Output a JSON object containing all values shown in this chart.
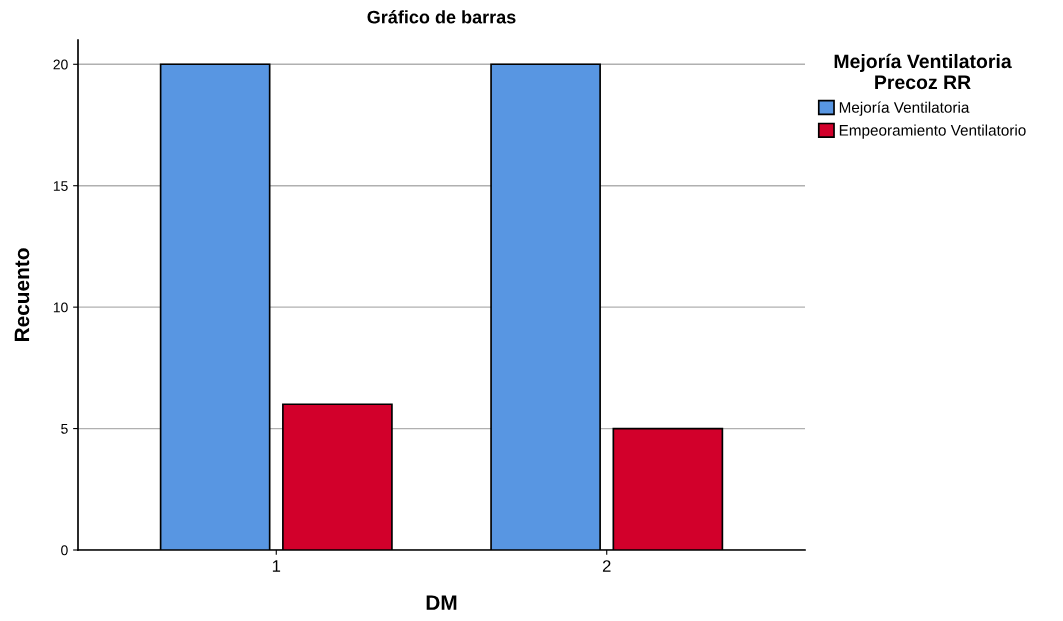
{
  "chart_data": {
    "type": "bar",
    "title": "Gráfico de barras",
    "xlabel": "DM",
    "ylabel": "Recuento",
    "legend_title": "Mejoría Ventilatoria\nPrecoz RR",
    "categories": [
      "1",
      "2"
    ],
    "series": [
      {
        "name": "Mejoría Ventilatoria",
        "color": "#5896e2",
        "values": [
          20,
          20
        ]
      },
      {
        "name": "Empeoramiento Ventilatorio",
        "color": "#d2002b",
        "values": [
          6,
          5
        ]
      }
    ],
    "ylim": [
      0,
      21
    ],
    "yticks": [
      0,
      5,
      10,
      15,
      20
    ],
    "grid": "y",
    "legend": "top right"
  }
}
